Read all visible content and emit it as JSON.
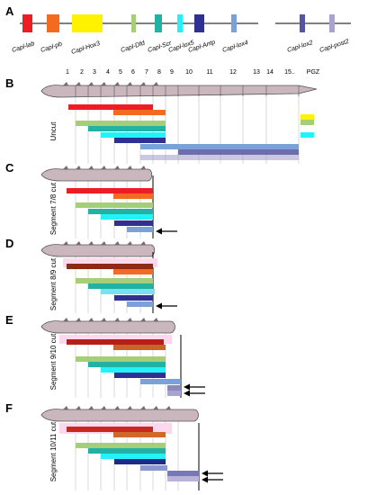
{
  "panels": {
    "A": "A",
    "B": "B",
    "C": "C",
    "D": "D",
    "E": "E",
    "F": "F"
  },
  "genes": [
    {
      "name": "Capl-lab",
      "color": "#ee1c24"
    },
    {
      "name": "Capl-pb",
      "color": "#f26b21"
    },
    {
      "name": "Capl-Hox3",
      "color": "#fff200"
    },
    {
      "name": "Capl-Dfd",
      "color": "#a6ce79"
    },
    {
      "name": "Capl-Scr",
      "color": "#22b2a4"
    },
    {
      "name": "Capl-lox5",
      "color": "#23f3f8"
    },
    {
      "name": "Capl-Antp",
      "color": "#2e3192"
    },
    {
      "name": "Capl-lox4",
      "color": "#7aa2d6"
    },
    {
      "name": "Capl-lox2",
      "color": "#5555a0"
    },
    {
      "name": "Capl-post2",
      "color": "#a9a3cf"
    }
  ],
  "segment_numbers": [
    "1",
    "2",
    "3",
    "4",
    "5",
    "6",
    "7",
    "8",
    "9",
    "10",
    "11",
    "12",
    "13",
    "14",
    "15..",
    "PGZ"
  ],
  "rows": {
    "B": "Uncut",
    "C": "Segment 7/8 cut",
    "D": "Segment 8/9 cut",
    "E": "Segment 9/10 cut",
    "F": "Segment 10/11 cut"
  },
  "colors": {
    "worm_fill": "#c9b7bd",
    "worm_stroke": "#555555",
    "guide_line": "#c8c8c8"
  }
}
